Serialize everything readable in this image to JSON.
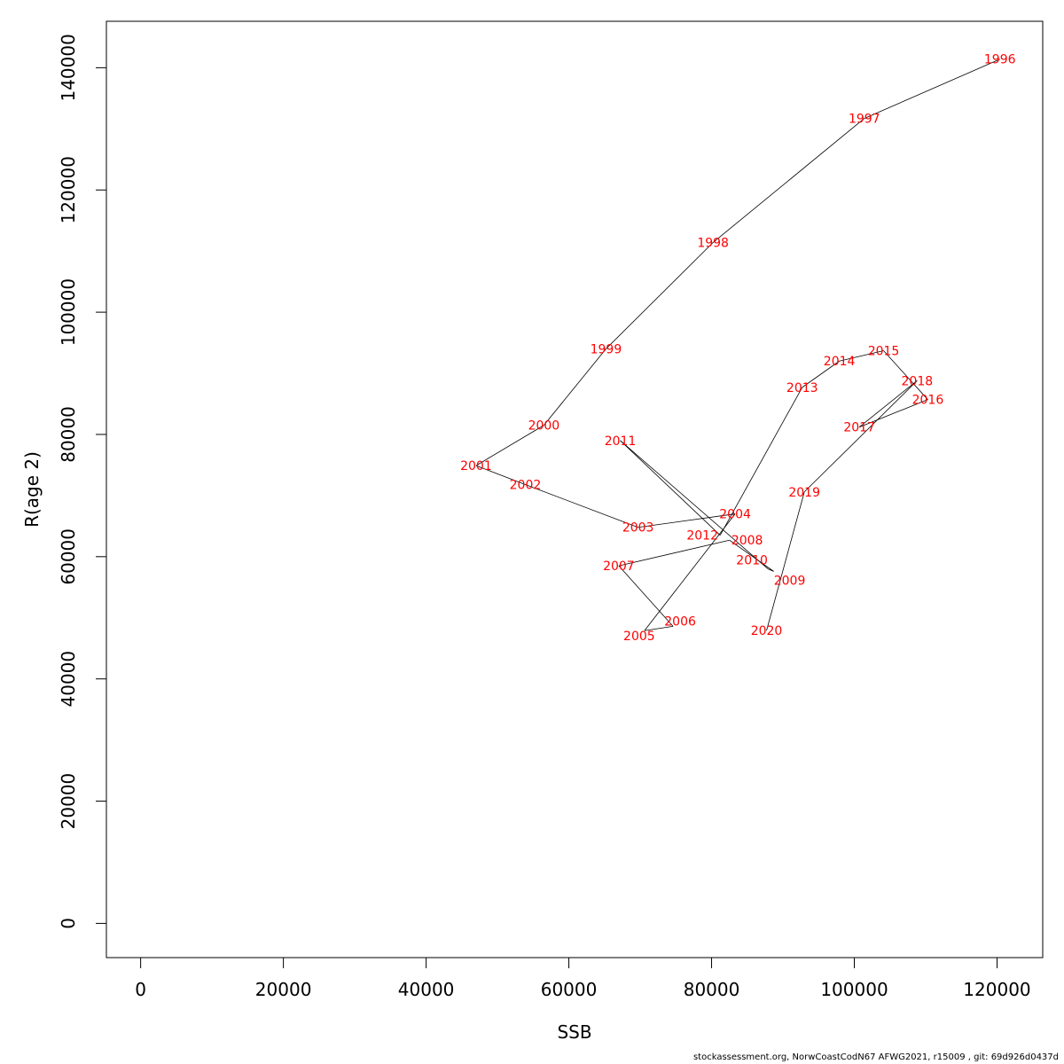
{
  "chart_data": {
    "type": "line",
    "title": "",
    "xlabel": "SSB",
    "ylabel": "R(age 2)",
    "xlim": [
      -4800,
      126400
    ],
    "ylim": [
      -5600,
      147600
    ],
    "xticks": [
      0,
      20000,
      40000,
      60000,
      80000,
      100000,
      120000
    ],
    "yticks": [
      0,
      20000,
      40000,
      60000,
      80000,
      100000,
      120000,
      140000
    ],
    "grid": false,
    "label_color": "#ff0000",
    "points": [
      {
        "year": "1996",
        "x": 120400,
        "y": 141400
      },
      {
        "year": "1997",
        "x": 101400,
        "y": 131700
      },
      {
        "year": "1998",
        "x": 80200,
        "y": 111400
      },
      {
        "year": "1999",
        "x": 65200,
        "y": 94000
      },
      {
        "year": "2000",
        "x": 56500,
        "y": 81500
      },
      {
        "year": "2001",
        "x": 47000,
        "y": 74900
      },
      {
        "year": "2002",
        "x": 53900,
        "y": 71800
      },
      {
        "year": "2003",
        "x": 69700,
        "y": 64800
      },
      {
        "year": "2004",
        "x": 83300,
        "y": 67000
      },
      {
        "year": "2005",
        "x": 70600,
        "y": 47900
      },
      {
        "year": "2006",
        "x": 74600,
        "y": 48600
      },
      {
        "year": "2007",
        "x": 67000,
        "y": 58500
      },
      {
        "year": "2008",
        "x": 82500,
        "y": 62700
      },
      {
        "year": "2009",
        "x": 88700,
        "y": 57600
      },
      {
        "year": "2010",
        "x": 87900,
        "y": 58000
      },
      {
        "year": "2011",
        "x": 67200,
        "y": 79000
      },
      {
        "year": "2012",
        "x": 81200,
        "y": 63500
      },
      {
        "year": "2013",
        "x": 92700,
        "y": 87700
      },
      {
        "year": "2014",
        "x": 97900,
        "y": 92000
      },
      {
        "year": "2015",
        "x": 104100,
        "y": 93700
      },
      {
        "year": "2016",
        "x": 110300,
        "y": 85700
      },
      {
        "year": "2017",
        "x": 100700,
        "y": 81200
      },
      {
        "year": "2018",
        "x": 108800,
        "y": 88800
      },
      {
        "year": "2019",
        "x": 93000,
        "y": 70600
      },
      {
        "year": "2020",
        "x": 87700,
        "y": 47900
      }
    ]
  },
  "footer": "stockassessment.org, NorwCoastCodN67  AFWG2021, r15009 , git: 69d926d0437d"
}
